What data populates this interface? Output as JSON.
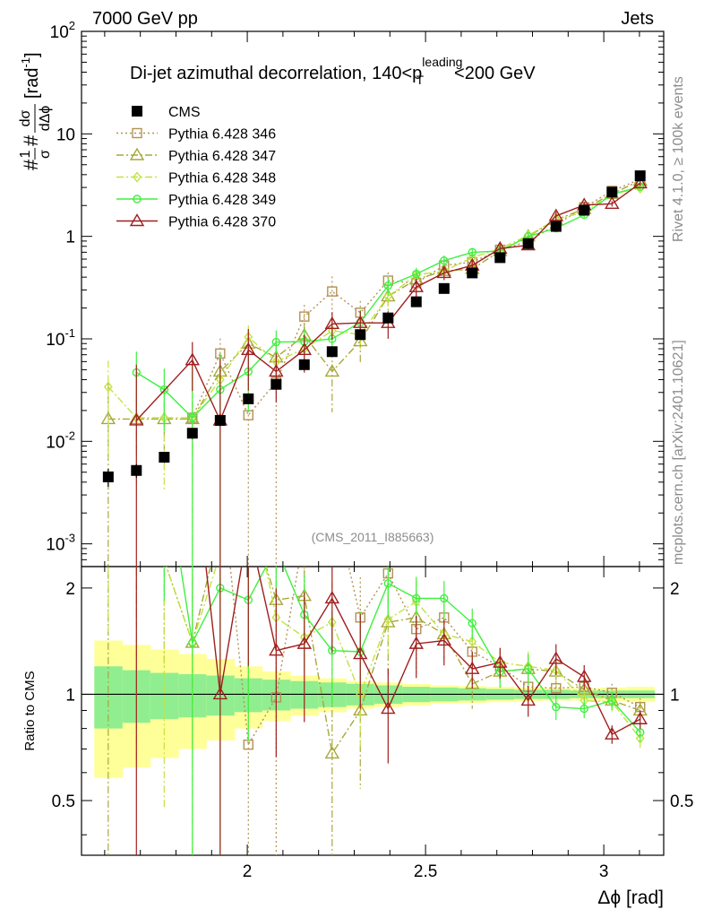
{
  "chart_data": {
    "type": "scatter",
    "header_left": "7000 GeV pp",
    "header_right": "Jets",
    "title": "Di-jet azimuthal decorrelation, 140<p",
    "title_sup": "leading",
    "title_sub": "T",
    "title_end": "<200 GeV",
    "ylabel_prefix": "#",
    "ylabel_frac1_num": "1",
    "ylabel_frac1_den": "σ",
    "ylabel_mid": "#",
    "ylabel_frac2_num": "dσ",
    "ylabel_frac2_den": "dΔϕ",
    "ylabel_unit": "[rad",
    "ylabel_unit_exp": "-1",
    "ylabel_unit_end": "]",
    "xlabel": "Δϕ [rad]",
    "ratio_ylabel": "Ratio to CMS",
    "analysis_tag": "(CMS_2011_I885663)",
    "side_label_top": "Rivet 4.1.0, ≥ 100k events",
    "side_label_bottom": "mcplots.cern.ch [arXiv:2401.10621]",
    "main_y_scale": "log",
    "main_ylim": [
      0.0006,
      100
    ],
    "main_ytick_labels": [
      {
        "base": "10",
        "exp": "-3",
        "value": 0.001
      },
      {
        "base": "10",
        "exp": "-2",
        "value": 0.01
      },
      {
        "base": "10",
        "exp": "-1",
        "value": 0.1
      },
      {
        "base": "1",
        "exp": "",
        "value": 1
      },
      {
        "base": "10",
        "exp": "",
        "value": 10
      },
      {
        "base": "10",
        "exp": "2",
        "value": 100
      }
    ],
    "xlim": [
      1.535,
      3.168
    ],
    "xticks": [
      {
        "value": 2,
        "label": "2"
      },
      {
        "value": 2.5,
        "label": "2.5"
      },
      {
        "value": 3,
        "label": "3"
      }
    ],
    "ratio_ylim": [
      0.35,
      2.3
    ],
    "ratio_yticks": [
      {
        "value": 0.5,
        "label": "0.5"
      },
      {
        "value": 1,
        "label": "1"
      },
      {
        "value": 2,
        "label": "2"
      }
    ],
    "x": [
      1.61,
      1.689,
      1.767,
      1.846,
      1.924,
      2.003,
      2.081,
      2.16,
      2.238,
      2.317,
      2.395,
      2.474,
      2.552,
      2.631,
      2.709,
      2.788,
      2.866,
      2.945,
      3.023,
      3.102
    ],
    "series": [
      {
        "name": "CMS",
        "color": "#000000",
        "marker": "square-filled",
        "line": "none",
        "values": [
          0.0045,
          0.0052,
          0.007,
          0.012,
          0.016,
          0.026,
          0.036,
          0.056,
          0.075,
          0.11,
          0.16,
          0.23,
          0.31,
          0.44,
          0.62,
          0.85,
          1.25,
          1.8,
          2.7,
          3.9
        ],
        "errors": [
          0.2,
          0.15,
          0.12,
          0.12,
          0.12,
          0.1,
          0.1,
          0.1,
          0.1,
          0.1,
          0.1,
          0.08,
          0.08,
          0.08,
          0.08,
          0.08,
          0.08,
          0.06,
          0.06,
          0.06
        ]
      },
      {
        "name": "Pythia 6.428 346",
        "color": "#b39155",
        "marker": "square-open",
        "line": "dotted",
        "values": [
          null,
          null,
          null,
          0.017,
          0.072,
          0.018,
          0.038,
          0.165,
          0.29,
          0.18,
          0.37,
          0.35,
          0.52,
          0.56,
          0.74,
          0.89,
          1.3,
          1.92,
          2.78,
          3.6
        ],
        "errors": [
          0,
          0,
          0,
          0.6,
          0.4,
          1.5,
          1.2,
          0.3,
          0.4,
          0.3,
          0.2,
          0.25,
          0.15,
          0.15,
          0.1,
          0.1,
          0.1,
          0.08,
          0.06,
          0.06
        ]
      },
      {
        "name": "Pythia 6.428 347",
        "color": "#a8a839",
        "marker": "triangle-open",
        "line": "dashdot",
        "values": [
          0.0165,
          0.0165,
          0.0165,
          0.0165,
          0.048,
          0.09,
          0.066,
          0.108,
          0.048,
          0.095,
          0.26,
          0.38,
          0.46,
          0.48,
          0.72,
          1.0,
          1.45,
          1.85,
          2.6,
          3.5
        ],
        "errors": [
          1.3,
          0.5,
          0.5,
          0.5,
          0.5,
          0.3,
          0.5,
          0.3,
          0.6,
          0.4,
          0.3,
          0.2,
          0.15,
          0.15,
          0.1,
          0.1,
          0.1,
          0.08,
          0.06,
          0.06
        ]
      },
      {
        "name": "Pythia 6.428 348",
        "color": "#c0e440",
        "marker": "diamond-open",
        "line": "dashdot",
        "values": [
          0.034,
          0.017,
          0.017,
          0.017,
          0.04,
          0.104,
          0.06,
          0.08,
          0.12,
          0.11,
          0.26,
          0.42,
          0.46,
          0.62,
          0.76,
          1.02,
          1.46,
          1.72,
          2.58,
          2.95
        ],
        "errors": [
          0.8,
          0.8,
          0.8,
          1.5,
          0.6,
          0.3,
          0.4,
          0.3,
          0.3,
          0.3,
          0.2,
          0.15,
          0.15,
          0.12,
          0.1,
          0.1,
          0.1,
          0.08,
          0.06,
          0.06
        ]
      },
      {
        "name": "Pythia 6.428 349",
        "color": "#3ff03f",
        "marker": "circle-open",
        "line": "solid",
        "values": [
          null,
          0.047,
          0.032,
          0.017,
          0.032,
          0.048,
          0.093,
          0.094,
          0.1,
          0.145,
          0.33,
          0.43,
          0.58,
          0.7,
          0.72,
          1.0,
          1.2,
          1.62,
          2.58,
          3.05
        ],
        "errors": [
          0,
          0.6,
          0.6,
          2.5,
          1.2,
          0.6,
          0.3,
          0.3,
          0.3,
          0.3,
          0.2,
          0.15,
          0.12,
          0.1,
          0.1,
          0.1,
          0.08,
          0.06,
          0.06,
          0.06
        ]
      },
      {
        "name": "Pythia 6.428 370",
        "color": "#a01e1e",
        "marker": "triangle-open",
        "line": "solid",
        "values": [
          null,
          0.016,
          null,
          0.062,
          0.016,
          0.078,
          0.048,
          0.078,
          0.14,
          0.143,
          0.143,
          0.32,
          0.44,
          0.52,
          0.76,
          0.82,
          1.58,
          2.02,
          2.08,
          3.3
        ],
        "errors": [
          0,
          2.5,
          0,
          0.5,
          3.0,
          0.6,
          0.5,
          0.4,
          0.3,
          0.3,
          0.3,
          0.2,
          0.15,
          0.12,
          0.1,
          0.1,
          0.1,
          0.08,
          0.06,
          0.06
        ]
      }
    ],
    "ratio_series": [
      {
        "name": "Pythia 6.428 346",
        "values": [
          null,
          null,
          null,
          3.2,
          4.4,
          0.72,
          0.98,
          2.9,
          3.7,
          1.65,
          2.2,
          1.53,
          1.65,
          1.32,
          1.2,
          1.05,
          1.04,
          1.05,
          1.01,
          0.92
        ]
      },
      {
        "name": "Pythia 6.428 347",
        "values": [
          3.6,
          3.2,
          2.4,
          1.4,
          3.0,
          3.4,
          1.85,
          1.9,
          0.68,
          0.9,
          1.6,
          1.65,
          1.48,
          1.07,
          1.16,
          1.18,
          1.16,
          1.03,
          0.96,
          0.9
        ]
      },
      {
        "name": "Pythia 6.428 348",
        "values": [
          7.5,
          3.3,
          2.4,
          1.4,
          2.5,
          4.0,
          1.65,
          1.45,
          1.6,
          1.0,
          1.63,
          1.83,
          1.48,
          1.41,
          1.23,
          1.2,
          1.17,
          0.96,
          0.95,
          0.75
        ]
      },
      {
        "name": "Pythia 6.428 349",
        "values": [
          null,
          9.0,
          4.6,
          1.4,
          2.0,
          1.85,
          2.6,
          1.68,
          1.33,
          1.32,
          2.06,
          1.87,
          1.87,
          1.59,
          1.16,
          1.18,
          0.92,
          0.91,
          0.96,
          0.78
        ]
      },
      {
        "name": "Pythia 6.428 370",
        "values": [
          null,
          3.0,
          null,
          5.1,
          1.0,
          3.0,
          1.33,
          1.39,
          1.87,
          1.3,
          0.91,
          1.39,
          1.42,
          1.18,
          1.23,
          0.96,
          1.26,
          1.12,
          0.77,
          0.85
        ]
      }
    ],
    "uncertainty_band_x_edges": [
      1.571,
      1.65,
      1.728,
      1.807,
      1.885,
      1.964,
      2.042,
      2.121,
      2.199,
      2.278,
      2.356,
      2.435,
      2.513,
      2.592,
      2.67,
      2.749,
      2.827,
      2.906,
      2.984,
      3.063,
      3.142
    ],
    "uncertainty_band_inner": [
      0.2,
      0.17,
      0.15,
      0.14,
      0.13,
      0.11,
      0.1,
      0.09,
      0.08,
      0.07,
      0.06,
      0.05,
      0.045,
      0.04,
      0.035,
      0.03,
      0.03,
      0.025,
      0.025,
      0.025
    ],
    "uncertainty_band_outer": [
      0.42,
      0.38,
      0.34,
      0.3,
      0.26,
      0.2,
      0.16,
      0.13,
      0.11,
      0.09,
      0.08,
      0.07,
      0.06,
      0.055,
      0.05,
      0.045,
      0.04,
      0.04,
      0.045,
      0.05
    ],
    "band_colors": {
      "inner": "#90ee90",
      "outer": "#ffff99"
    }
  }
}
